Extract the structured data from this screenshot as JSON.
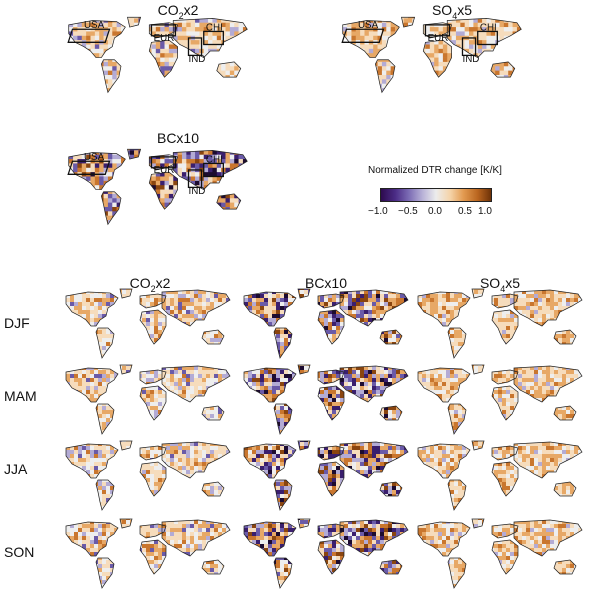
{
  "top_panels": [
    {
      "title_main": "CO",
      "title_sub": "2",
      "title_rest": "x2",
      "variant": "co2"
    },
    {
      "title_main": "SO",
      "title_sub": "4",
      "title_rest": "x5",
      "variant": "so4"
    },
    {
      "title_main": "BCx10",
      "title_sub": "",
      "title_rest": "",
      "variant": "bc"
    }
  ],
  "regions": [
    "USA",
    "EUR",
    "CHI",
    "IND"
  ],
  "legend": {
    "title": "Normalized DTR change [K/K]",
    "ticks": [
      "−1.0",
      "−0.5",
      "0.0",
      "0.5",
      "1.0"
    ],
    "colors": [
      "#2d0a4e",
      "#4b2c86",
      "#7a6ab3",
      "#b9b3d8",
      "#ececec",
      "#f5d3a8",
      "#e29a50",
      "#b9651f",
      "#6e3208"
    ]
  },
  "seasonal": {
    "column_titles": [
      {
        "main": "CO",
        "sub": "2",
        "rest": "x2"
      },
      {
        "main": "BCx10",
        "sub": "",
        "rest": ""
      },
      {
        "main": "SO",
        "sub": "4",
        "rest": "x5"
      }
    ],
    "rows": [
      "DJF",
      "MAM",
      "JJA",
      "SON"
    ]
  }
}
